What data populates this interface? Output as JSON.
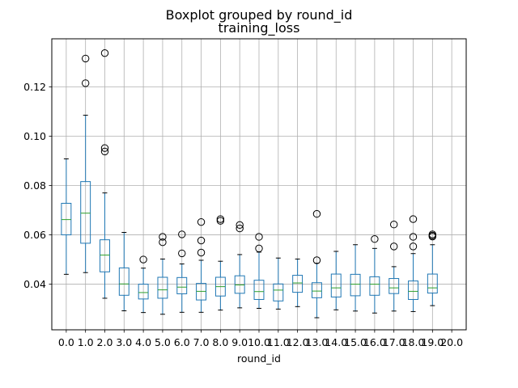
{
  "chart_data": {
    "type": "boxplot",
    "suptitle": "Boxplot grouped by round_id",
    "title": "training_loss",
    "xlabel": "round_id",
    "ylabel": "",
    "ylim": [
      0.0215,
      0.1395
    ],
    "yticks": [
      0.04,
      0.06,
      0.08,
      0.1,
      0.12
    ],
    "ytick_labels": [
      "0.04",
      "0.06",
      "0.08",
      "0.10",
      "0.12"
    ],
    "grid": true,
    "categories": [
      "0.0",
      "1.0",
      "2.0",
      "3.0",
      "4.0",
      "5.0",
      "6.0",
      "7.0",
      "8.0",
      "9.0",
      "10.0",
      "11.0",
      "12.0",
      "13.0",
      "14.0",
      "15.0",
      "16.0",
      "17.0",
      "18.0",
      "19.0",
      "20.0"
    ],
    "boxes": [
      {
        "whislo": 0.044,
        "q1": 0.06,
        "med": 0.0662,
        "q3": 0.0728,
        "whishi": 0.0908,
        "fliers": []
      },
      {
        "whislo": 0.0447,
        "q1": 0.0566,
        "med": 0.0688,
        "q3": 0.0816,
        "whishi": 0.1085,
        "fliers": [
          0.1215,
          0.1315
        ]
      },
      {
        "whislo": 0.0343,
        "q1": 0.045,
        "med": 0.0518,
        "q3": 0.058,
        "whishi": 0.077,
        "fliers": [
          0.0938,
          0.0952,
          0.1337
        ]
      },
      {
        "whislo": 0.0292,
        "q1": 0.0355,
        "med": 0.0401,
        "q3": 0.0466,
        "whishi": 0.061,
        "fliers": []
      },
      {
        "whislo": 0.0285,
        "q1": 0.034,
        "med": 0.0366,
        "q3": 0.04,
        "whishi": 0.0465,
        "fliers": [
          0.05
        ]
      },
      {
        "whislo": 0.0278,
        "q1": 0.0343,
        "med": 0.0377,
        "q3": 0.0428,
        "whishi": 0.0502,
        "fliers": [
          0.057,
          0.0592
        ]
      },
      {
        "whislo": 0.0286,
        "q1": 0.0361,
        "med": 0.0388,
        "q3": 0.0427,
        "whishi": 0.0482,
        "fliers": [
          0.0525,
          0.0602
        ]
      },
      {
        "whislo": 0.0286,
        "q1": 0.0336,
        "med": 0.0371,
        "q3": 0.0403,
        "whishi": 0.0497,
        "fliers": [
          0.0528,
          0.0577,
          0.0652
        ]
      },
      {
        "whislo": 0.0295,
        "q1": 0.0352,
        "med": 0.039,
        "q3": 0.0428,
        "whishi": 0.0493,
        "fliers": [
          0.0657,
          0.0664
        ]
      },
      {
        "whislo": 0.0304,
        "q1": 0.0363,
        "med": 0.0397,
        "q3": 0.0434,
        "whishi": 0.052,
        "fliers": [
          0.0626,
          0.064
        ]
      },
      {
        "whislo": 0.0302,
        "q1": 0.0338,
        "med": 0.037,
        "q3": 0.0416,
        "whishi": 0.053,
        "fliers": [
          0.0545,
          0.0592
        ]
      },
      {
        "whislo": 0.0299,
        "q1": 0.0332,
        "med": 0.0376,
        "q3": 0.0401,
        "whishi": 0.0506,
        "fliers": []
      },
      {
        "whislo": 0.0309,
        "q1": 0.0367,
        "med": 0.0405,
        "q3": 0.0436,
        "whishi": 0.0502,
        "fliers": []
      },
      {
        "whislo": 0.0264,
        "q1": 0.0345,
        "med": 0.0372,
        "q3": 0.0406,
        "whishi": 0.0485,
        "fliers": [
          0.0497,
          0.0685
        ]
      },
      {
        "whislo": 0.0296,
        "q1": 0.0348,
        "med": 0.0385,
        "q3": 0.0441,
        "whishi": 0.0533,
        "fliers": []
      },
      {
        "whislo": 0.0291,
        "q1": 0.0353,
        "med": 0.04,
        "q3": 0.044,
        "whishi": 0.056,
        "fliers": []
      },
      {
        "whislo": 0.0283,
        "q1": 0.0355,
        "med": 0.04,
        "q3": 0.043,
        "whishi": 0.0545,
        "fliers": [
          0.0583
        ]
      },
      {
        "whislo": 0.0291,
        "q1": 0.0362,
        "med": 0.0385,
        "q3": 0.0423,
        "whishi": 0.0471,
        "fliers": [
          0.0553,
          0.0642
        ]
      },
      {
        "whislo": 0.0289,
        "q1": 0.0338,
        "med": 0.0371,
        "q3": 0.0413,
        "whishi": 0.0524,
        "fliers": [
          0.0553,
          0.0592,
          0.0664
        ]
      },
      {
        "whislo": 0.0313,
        "q1": 0.0364,
        "med": 0.0385,
        "q3": 0.0441,
        "whishi": 0.056,
        "fliers": [
          0.0593,
          0.0597,
          0.0602
        ]
      },
      null
    ]
  }
}
